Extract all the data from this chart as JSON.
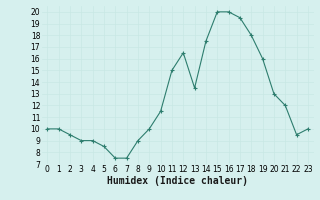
{
  "x": [
    0,
    1,
    2,
    3,
    4,
    5,
    6,
    7,
    8,
    9,
    10,
    11,
    12,
    13,
    14,
    15,
    16,
    17,
    18,
    19,
    20,
    21,
    22,
    23
  ],
  "y": [
    10,
    10,
    9.5,
    9,
    9,
    8.5,
    7.5,
    7.5,
    9,
    10,
    11.5,
    15,
    16.5,
    13.5,
    17.5,
    20,
    20,
    19.5,
    18,
    16,
    13,
    12,
    9.5,
    10
  ],
  "xlabel": "Humidex (Indice chaleur)",
  "line_color": "#2d7d6e",
  "marker": "+",
  "marker_color": "#2d7d6e",
  "bg_color": "#d6f0ee",
  "grid_color": "#c8e8e4",
  "xlim": [
    -0.5,
    23.5
  ],
  "ylim": [
    7,
    20.5
  ],
  "yticks": [
    7,
    8,
    9,
    10,
    11,
    12,
    13,
    14,
    15,
    16,
    17,
    18,
    19,
    20
  ],
  "xticks": [
    0,
    1,
    2,
    3,
    4,
    5,
    6,
    7,
    8,
    9,
    10,
    11,
    12,
    13,
    14,
    15,
    16,
    17,
    18,
    19,
    20,
    21,
    22,
    23
  ],
  "tick_fontsize": 5.5,
  "xlabel_fontsize": 7,
  "xlabel_fontweight": "bold"
}
